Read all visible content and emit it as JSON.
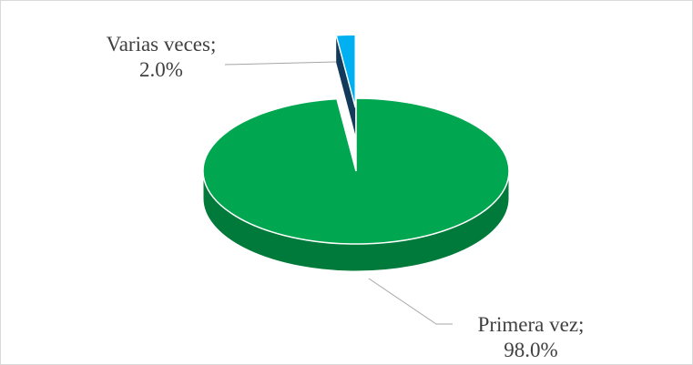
{
  "chart_data": {
    "type": "pie",
    "style": "3d-exploded",
    "title": "",
    "slices": [
      {
        "label": "Primera vez",
        "value": 98.0,
        "display": "98.0%",
        "color": "#00a650",
        "side_color": "#007a3a"
      },
      {
        "label": "Varias veces",
        "value": 2.0,
        "display": "2.0%",
        "color": "#00b0f0",
        "side_color": "#0b5d87"
      }
    ],
    "data_labels": [
      {
        "category": "Varias veces;",
        "value": "2.0%"
      },
      {
        "category": "Primera vez;",
        "value": "98.0%"
      }
    ],
    "legend": "none"
  }
}
